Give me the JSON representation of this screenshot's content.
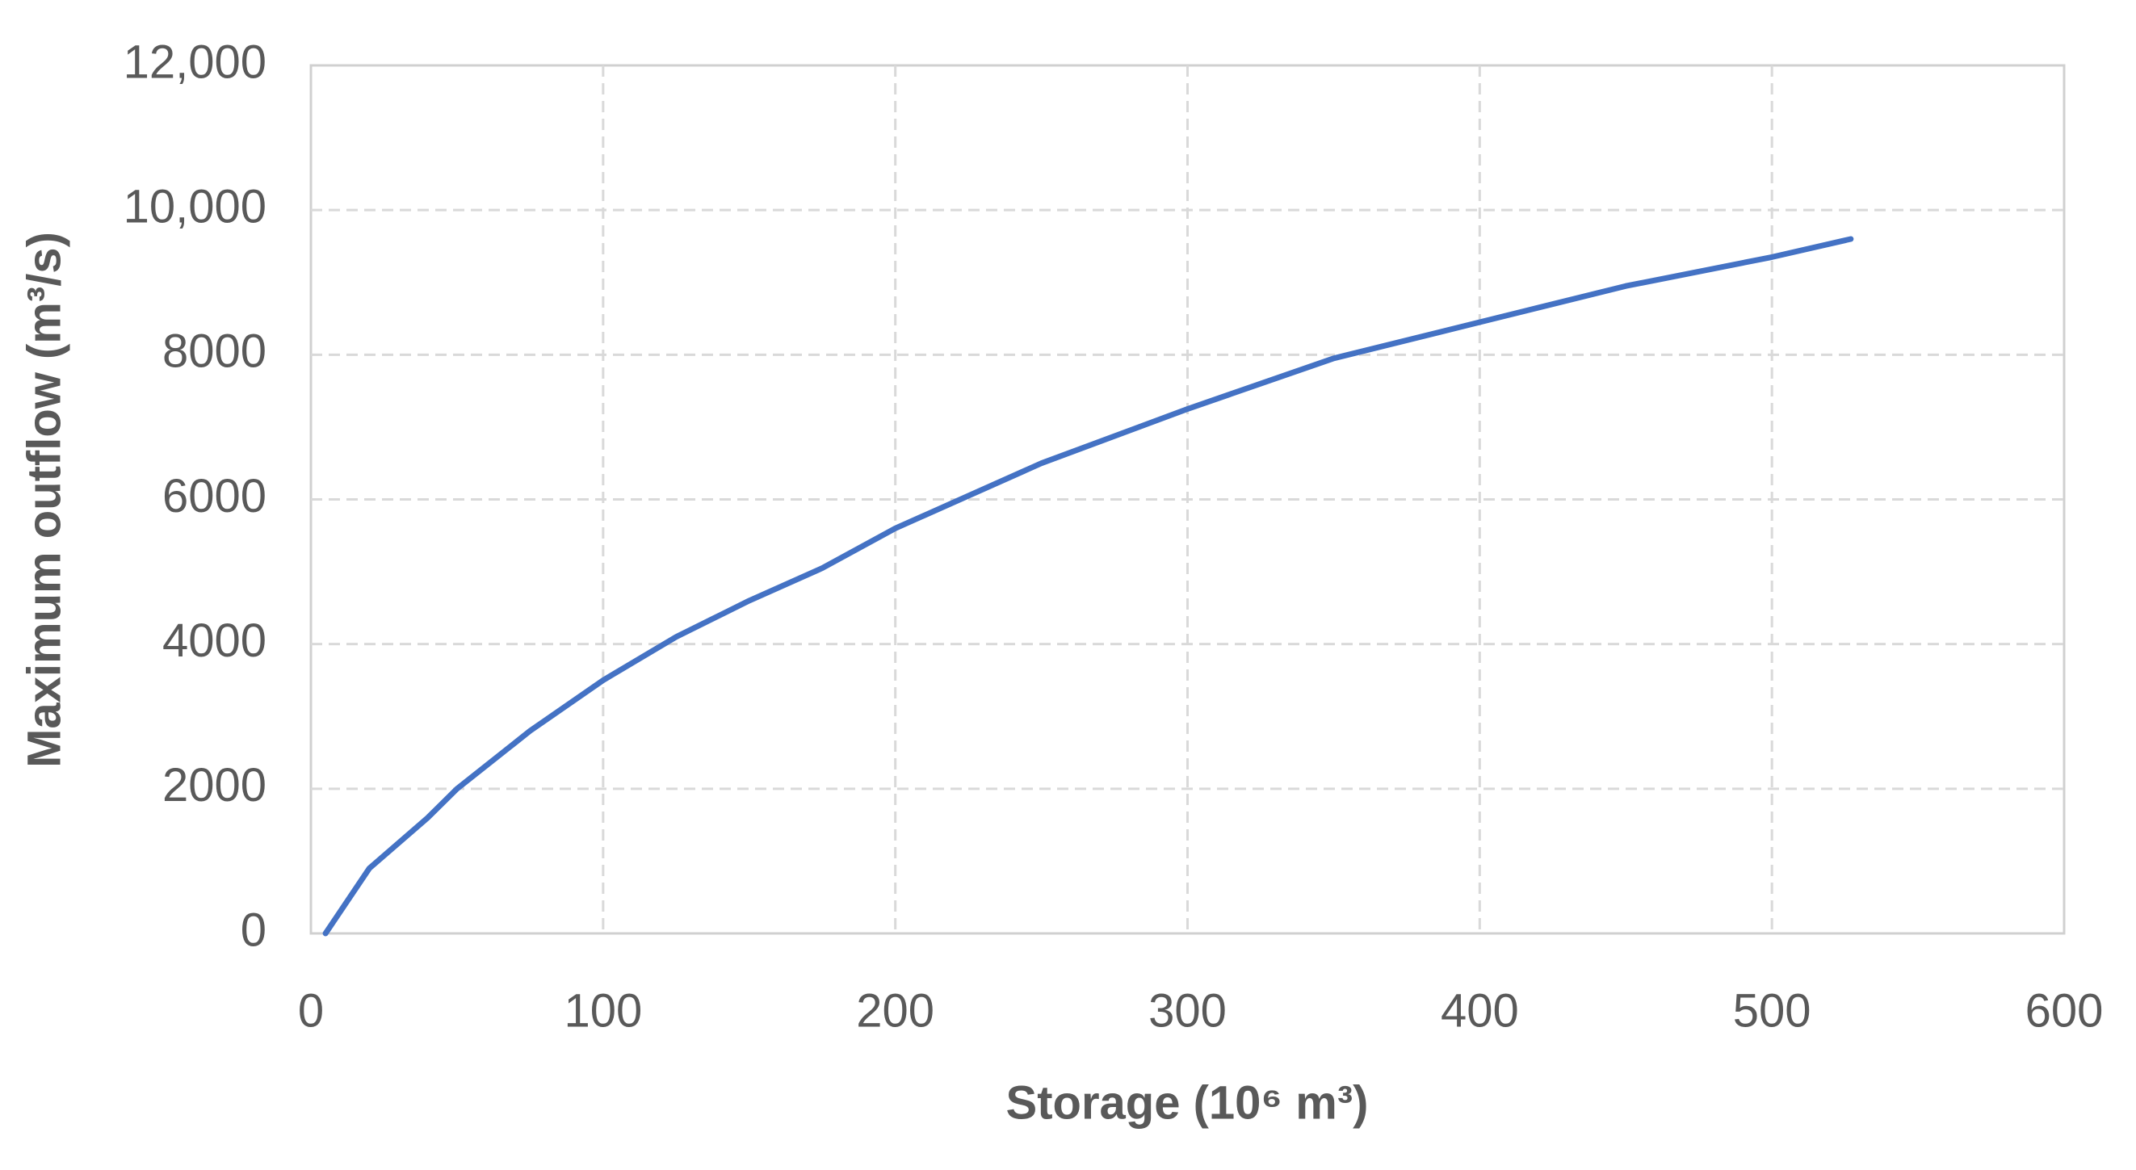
{
  "chart_data": {
    "type": "line",
    "xlabel": "Storage (10⁶ m³)",
    "ylabel": "Maximum outflow (m³/s)",
    "x": [
      5,
      20,
      40,
      50,
      75,
      100,
      125,
      150,
      175,
      200,
      250,
      300,
      350,
      400,
      450,
      500,
      527
    ],
    "series": [
      {
        "name": "Maximum outflow",
        "color": "#4472c4",
        "values": [
          0,
          900,
          1600,
          2000,
          2800,
          3500,
          4100,
          4600,
          5050,
          5600,
          6500,
          7250,
          7950,
          8450,
          8950,
          9350,
          9600
        ]
      }
    ],
    "xlim": [
      0,
      600
    ],
    "xticks": [
      0,
      100,
      200,
      300,
      400,
      500,
      600
    ],
    "ylim": [
      0,
      12000
    ],
    "yticks": [
      0,
      2000,
      4000,
      6000,
      8000,
      {
        "value": 10000,
        "label": "10,000"
      },
      {
        "value": 12000,
        "label": "12,000"
      }
    ],
    "grid": true
  }
}
